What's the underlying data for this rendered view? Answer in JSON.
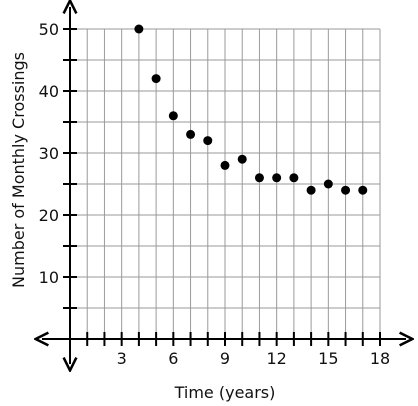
{
  "chart_data": {
    "type": "scatter",
    "xlabel": "Time (years)",
    "ylabel": "Number of Monthly Crossings",
    "xlim": [
      0,
      18
    ],
    "ylim": [
      0,
      50
    ],
    "x_ticks": [
      3,
      6,
      9,
      12,
      15,
      18
    ],
    "y_ticks": [
      10,
      20,
      30,
      40,
      50
    ],
    "grid": true,
    "series": [
      {
        "x": [
          4,
          5,
          6,
          7,
          8,
          9,
          10,
          11,
          12,
          13,
          14,
          15,
          16,
          17
        ],
        "y": [
          50,
          42,
          36,
          33,
          32,
          28,
          29,
          26,
          26,
          26,
          24,
          25,
          24,
          24
        ]
      }
    ],
    "colors": {
      "marker": "#000000",
      "grid": "#9a9a9a",
      "axis": "#000000"
    }
  }
}
